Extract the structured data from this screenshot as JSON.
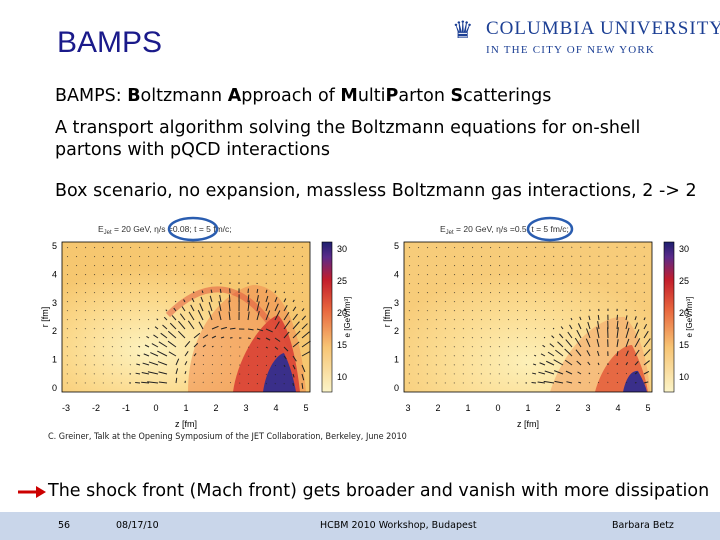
{
  "slide": {
    "title": "BAMPS",
    "logo": {
      "line1": "COLUMBIA UNIVERSITY",
      "line2": "IN THE CITY OF NEW YORK",
      "icon": "crown-icon"
    },
    "bullet1": {
      "prefix": "BAMPS: ",
      "parts": [
        {
          "b": "B",
          "t": "oltzmann "
        },
        {
          "b": "A",
          "t": "pproach of "
        },
        {
          "b": "M",
          "t": "ulti"
        },
        {
          "b": "P",
          "t": "arton "
        },
        {
          "b": "S",
          "t": "catterings"
        }
      ]
    },
    "bullet2": "A transport algorithm solving the Boltzmann equations for on-shell partons with p​QCD interactions",
    "bullet3": "Box scenario, no expansion, massless Boltzmann gas interactions, 2 -> 2",
    "credit": "C. Greiner, Talk at the Opening Symposium of the JET Collaboration, Berkeley, June 2010",
    "conclusion": "The shock front (Mach front) gets broader and vanish with more dissipation",
    "accent_color": "#1c3f94",
    "highlight_color": "#2a5db0",
    "arrow_color": "#cc0000"
  },
  "plots": [
    {
      "header_a": "E",
      "header_sub": "Jet",
      "header_b": " = 20 GeV, ",
      "highlight": "η/s =0.08",
      "header_c": "; t = 5 fm/c;",
      "xlabel": "z [fm]",
      "ylabel": "r [fm]",
      "cblabel": "e [GeV/fm³]",
      "xticks": [
        "-3",
        "-2",
        "-1",
        "0",
        "1",
        "2",
        "3",
        "4",
        "5"
      ],
      "yticks": [
        "0",
        "1",
        "2",
        "3",
        "4",
        "5"
      ],
      "cbticks": [
        "10",
        "15",
        "20",
        "25",
        "30"
      ]
    },
    {
      "header_a": "E",
      "header_sub": "Jet",
      "header_b": " = 20 GeV, ",
      "highlight": "η/s =0.5",
      "header_c": "; t = 5 fm/c;",
      "xlabel": "z [fm]",
      "ylabel": "r [fm]",
      "cblabel": "e [GeV/fm³]",
      "xticks": [
        "3",
        "2",
        "1",
        "0",
        "1",
        "2",
        "3",
        "4",
        "5"
      ],
      "yticks": [
        "0",
        "1",
        "2",
        "3",
        "4",
        "5"
      ],
      "cbticks": [
        "10",
        "15",
        "20",
        "25",
        "30"
      ]
    }
  ],
  "footer": {
    "page": "56",
    "date": "08/17/10",
    "event": "HCBM 2010 Workshop, Budapest",
    "author": "Barbara Betz"
  }
}
